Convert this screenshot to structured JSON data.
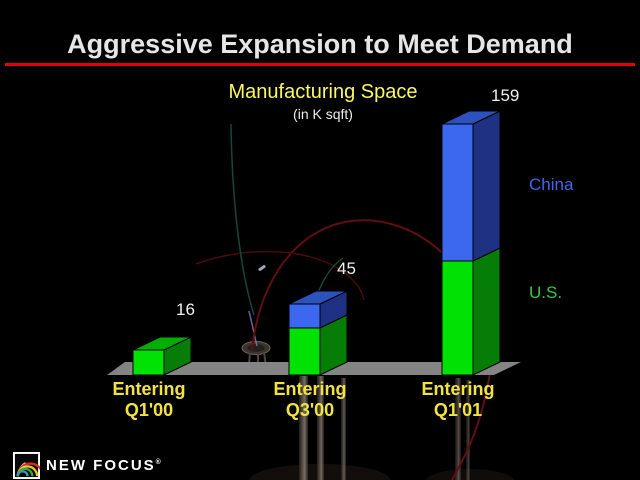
{
  "slide": {
    "title": "Aggressive Expansion to Meet Demand",
    "rule_color": "#E60000"
  },
  "chart_data": {
    "type": "bar",
    "stacked": true,
    "projection": "3d-oblique",
    "title": "Manufacturing Space",
    "subtitle": "(in K sqft)",
    "unit": "K sqft",
    "categories": [
      {
        "line1": "Entering",
        "line2": "Q1'00"
      },
      {
        "line1": "Entering",
        "line2": "Q3'00"
      },
      {
        "line1": "Entering",
        "line2": "Q1'01"
      }
    ],
    "series": [
      {
        "name": "U.S.",
        "values": [
          16,
          30,
          72
        ],
        "legend_color": "#33CC44",
        "colors": {
          "front": "#00E104",
          "top": "#00AE04",
          "side": "#067D06"
        }
      },
      {
        "name": "China",
        "values": [
          0,
          15,
          87
        ],
        "legend_color": "#4464E8",
        "colors": {
          "front": "#3C68F0",
          "top": "#2C52BE",
          "side": "#1F3182"
        }
      }
    ],
    "totals": [
      16,
      45,
      159
    ],
    "floor_color": "#848484",
    "title_color": "#FCF860",
    "value_label_color": "#F0F0F0",
    "category_label_color": "#F2E440",
    "legend_position": "right"
  },
  "footer": {
    "logo_text": "NEW FOCUS",
    "registered_mark": "®"
  }
}
